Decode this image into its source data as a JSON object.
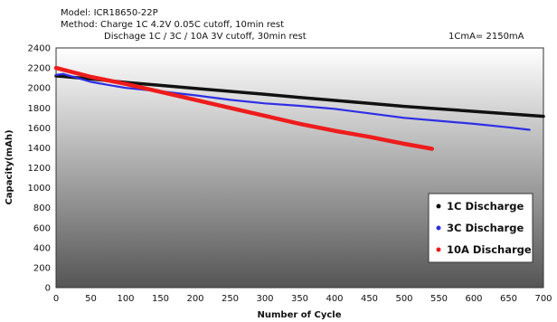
{
  "header": {
    "model": "Model: ICR18650-22P",
    "method_charge": "Method: Charge  1C 4.2V 0.05C cutoff,  10min rest",
    "method_discharge": "Dischage  1C / 3C / 10A  3V cutoff,  30min rest",
    "cma_note": "1CmA= 2150mA"
  },
  "chart_data": {
    "type": "line",
    "title": "",
    "xlabel": "Number of Cycle",
    "ylabel": "Capacity(mAh)",
    "xlim": [
      0,
      700
    ],
    "ylim": [
      0,
      2400
    ],
    "x_ticks": [
      0,
      50,
      100,
      150,
      200,
      250,
      300,
      350,
      400,
      450,
      500,
      550,
      600,
      650,
      700
    ],
    "y_ticks": [
      0,
      200,
      400,
      600,
      800,
      1000,
      1200,
      1400,
      1600,
      1800,
      2000,
      2200,
      2400
    ],
    "grid": false,
    "legend_position": "bottom-right",
    "series": [
      {
        "name": "1C Discharge",
        "color": "#111111",
        "x": [
          0,
          50,
          100,
          150,
          200,
          250,
          300,
          350,
          400,
          450,
          500,
          550,
          600,
          650,
          700
        ],
        "y": [
          2120,
          2090,
          2055,
          2025,
          1995,
          1965,
          1935,
          1905,
          1875,
          1845,
          1815,
          1790,
          1765,
          1740,
          1715
        ]
      },
      {
        "name": "3C Discharge",
        "color": "#2e2ee6",
        "x": [
          0,
          10,
          30,
          50,
          75,
          100,
          150,
          200,
          250,
          300,
          350,
          400,
          450,
          500,
          550,
          600,
          650,
          680
        ],
        "y": [
          2130,
          2140,
          2100,
          2060,
          2030,
          2000,
          1965,
          1925,
          1880,
          1845,
          1820,
          1790,
          1745,
          1700,
          1670,
          1640,
          1605,
          1580
        ]
      },
      {
        "name": "10A Discharge",
        "color": "#ee1c1c",
        "x": [
          0,
          50,
          100,
          150,
          200,
          250,
          300,
          350,
          400,
          450,
          500,
          540
        ],
        "y": [
          2200,
          2110,
          2040,
          1960,
          1880,
          1800,
          1720,
          1640,
          1570,
          1510,
          1440,
          1390
        ]
      }
    ]
  }
}
